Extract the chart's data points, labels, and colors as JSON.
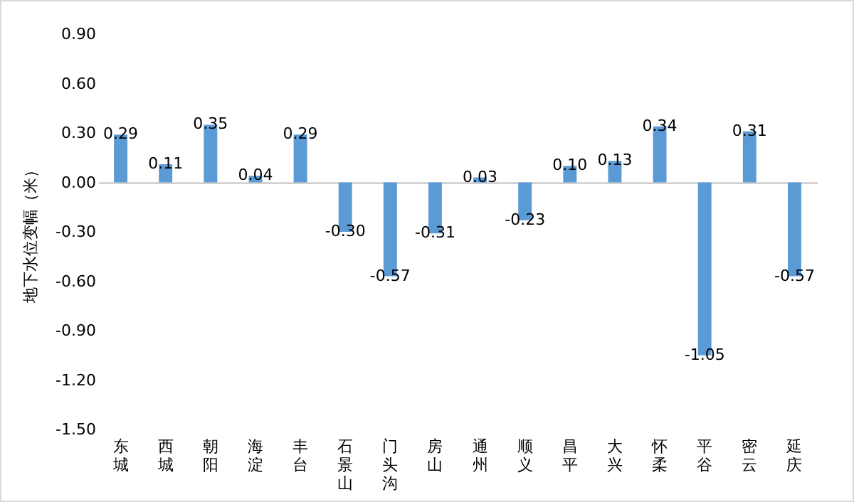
{
  "chart_data": {
    "type": "bar",
    "ylabel": "地下水位变幅（米）",
    "categories": [
      "东城",
      "西城",
      "朝阳",
      "海淀",
      "丰台",
      "石景山",
      "门头沟",
      "房山",
      "通州",
      "顺义",
      "昌平",
      "大兴",
      "怀柔",
      "平谷",
      "密云",
      "延庆"
    ],
    "values": [
      0.29,
      0.11,
      0.35,
      0.04,
      0.29,
      -0.3,
      -0.57,
      -0.31,
      0.03,
      -0.23,
      0.1,
      0.13,
      0.34,
      -1.05,
      0.31,
      -0.57
    ],
    "color": "#5b9bd5",
    "value_labels": [
      "0.29",
      "0.11",
      "0.35",
      "0.04",
      "0.29",
      "-0.30",
      "-0.57",
      "-0.31",
      "0.03",
      "-0.23",
      "0.10",
      "0.13",
      "0.34",
      "-1.05",
      "0.31",
      "-0.57"
    ],
    "ylim": [
      -1.5,
      0.9
    ],
    "yticks": [
      {
        "value": -1.5,
        "label": "-1.50"
      },
      {
        "value": -1.2,
        "label": "-1.20"
      },
      {
        "value": -0.9,
        "label": "-0.90"
      },
      {
        "value": -0.6,
        "label": "-0.60"
      },
      {
        "value": -0.3,
        "label": "-0.30"
      },
      {
        "value": 0,
        "label": "0.00"
      },
      {
        "value": 0.3,
        "label": "0.30"
      },
      {
        "value": 0.6,
        "label": "0.60"
      },
      {
        "value": 0.9,
        "label": "0.90"
      }
    ]
  }
}
